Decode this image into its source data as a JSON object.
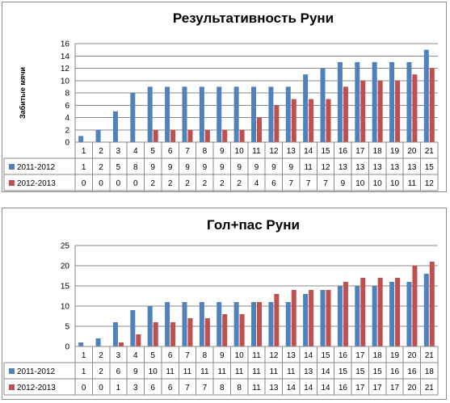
{
  "chart_data": [
    {
      "type": "bar",
      "title": "Результативность Руни",
      "ylabel": "Забитые мячи",
      "xlabel": "",
      "ylim": [
        0,
        16
      ],
      "yticks": [
        0,
        2,
        4,
        6,
        8,
        10,
        12,
        14,
        16
      ],
      "grid": true,
      "legend": "data-table",
      "categories": [
        "1",
        "2",
        "3",
        "4",
        "5",
        "6",
        "7",
        "8",
        "9",
        "10",
        "11",
        "12",
        "13",
        "14",
        "15",
        "16",
        "17",
        "18",
        "19",
        "20",
        "21"
      ],
      "series": [
        {
          "name": "2011-2012",
          "color": "#4f81bd",
          "values": [
            1,
            2,
            5,
            8,
            9,
            9,
            9,
            9,
            9,
            9,
            9,
            9,
            9,
            11,
            12,
            13,
            13,
            13,
            13,
            13,
            15
          ]
        },
        {
          "name": "2012-2013",
          "color": "#c0504d",
          "values": [
            0,
            0,
            0,
            0,
            2,
            2,
            2,
            2,
            2,
            2,
            4,
            6,
            7,
            7,
            7,
            9,
            10,
            10,
            10,
            11,
            12
          ]
        }
      ]
    },
    {
      "type": "bar",
      "title": "Гол+пас Руни",
      "ylabel": "",
      "xlabel": "",
      "ylim": [
        0,
        25
      ],
      "yticks": [
        0,
        5,
        10,
        15,
        20,
        25
      ],
      "grid": true,
      "legend": "data-table",
      "categories": [
        "1",
        "2",
        "3",
        "4",
        "5",
        "6",
        "7",
        "8",
        "9",
        "10",
        "11",
        "12",
        "13",
        "14",
        "15",
        "16",
        "17",
        "18",
        "19",
        "20",
        "21"
      ],
      "series": [
        {
          "name": "2011-2012",
          "color": "#4f81bd",
          "values": [
            1,
            2,
            6,
            9,
            10,
            11,
            11,
            11,
            11,
            11,
            11,
            11,
            11,
            13,
            14,
            15,
            15,
            15,
            16,
            16,
            18
          ]
        },
        {
          "name": "2012-2013",
          "color": "#c0504d",
          "values": [
            0,
            0,
            1,
            3,
            6,
            6,
            7,
            7,
            8,
            8,
            11,
            13,
            14,
            14,
            14,
            16,
            17,
            17,
            17,
            20,
            21
          ]
        }
      ]
    }
  ]
}
